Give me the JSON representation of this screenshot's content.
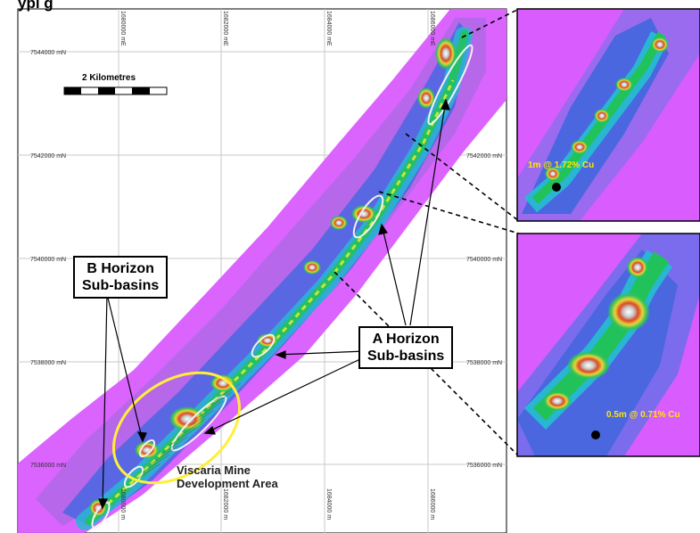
{
  "title_partial": "ypi g",
  "scale": {
    "label": "2 Kilometres"
  },
  "grid": {
    "northings": [
      "7544000 mN",
      "7542000 mN",
      "7540000 mN",
      "7538000 mN",
      "7536000 mN"
    ],
    "eastings_top": [
      "1680000 mE",
      "1682000 mE",
      "1684000 mE",
      "1686000 mE"
    ],
    "eastings_bottom": [
      "1680000 m",
      "1682000 m",
      "1684000 m",
      "1686000 m"
    ]
  },
  "labels": {
    "b_horizon": [
      "B Horizon",
      "Sub-basins"
    ],
    "a_horizon": [
      "A Horizon",
      "Sub-basins"
    ],
    "viscaria": [
      "Viscaria Mine",
      "Development Area"
    ]
  },
  "insets": {
    "top_assay": "1m @ 1.72% Cu",
    "bottom_assay": "0.5m @ 0.71% Cu"
  },
  "colors": {
    "magenta": "#d95cff",
    "purple": "#b267e8",
    "blue": "#4a67e0",
    "cyan": "#29b6d3",
    "green": "#22c25a",
    "yellow": "#d9e83a",
    "red": "#d94a28",
    "outline": "#ffef3a"
  }
}
